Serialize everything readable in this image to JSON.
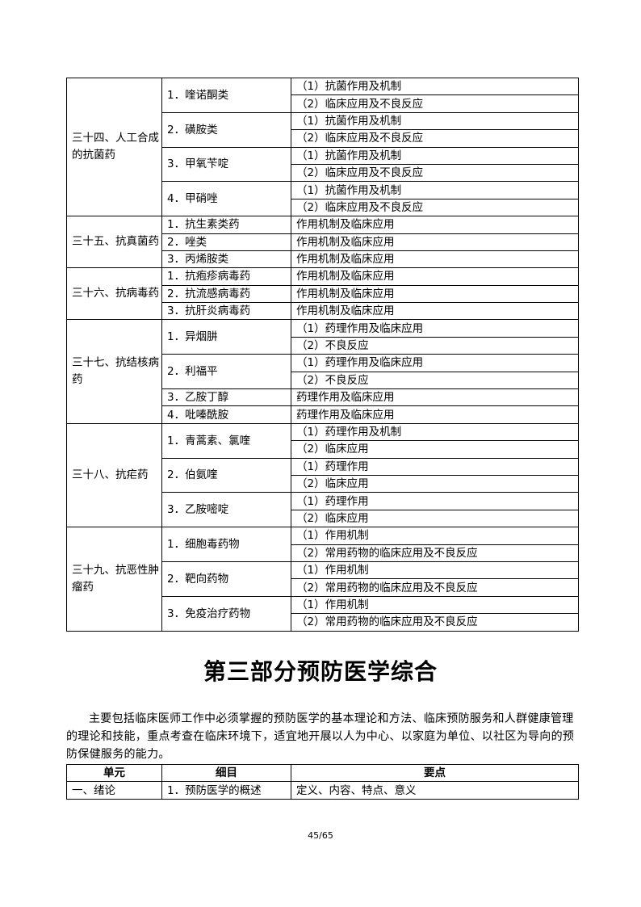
{
  "sections": [
    {
      "title": "三十四、人工合成的抗菌药",
      "items": [
        {
          "name": "1．喹诺酮类",
          "points": [
            "（1）抗菌作用及机制",
            "（2）临床应用及不良反应"
          ]
        },
        {
          "name": "2．磺胺类",
          "points": [
            "（1）抗菌作用及机制",
            "（2）临床应用及不良反应"
          ]
        },
        {
          "name": "3．甲氧苄啶",
          "points": [
            "（1）抗菌作用及机制",
            "（2）临床应用及不良反应"
          ]
        },
        {
          "name": "4．甲硝唑",
          "points": [
            "（1）抗菌作用及机制",
            "（2）临床应用及不良反应"
          ]
        }
      ]
    },
    {
      "title": "三十五、抗真菌药",
      "items": [
        {
          "name": "1．抗生素类药",
          "points": [
            "作用机制及临床应用"
          ]
        },
        {
          "name": "2．唑类",
          "points": [
            "作用机制及临床应用"
          ]
        },
        {
          "name": "3．丙烯胺类",
          "points": [
            "作用机制及临床应用"
          ]
        }
      ]
    },
    {
      "title": "三十六、抗病毒药",
      "items": [
        {
          "name": "1．抗疱疹病毒药",
          "points": [
            "作用机制及临床应用"
          ]
        },
        {
          "name": "2．抗流感病毒药",
          "points": [
            "作用机制及临床应用"
          ]
        },
        {
          "name": "3．抗肝炎病毒药",
          "points": [
            "作用机制及临床应用"
          ]
        }
      ]
    },
    {
      "title": "三十七、抗结核病药",
      "items": [
        {
          "name": "1．异烟肼",
          "points": [
            "（1）药理作用及临床应用",
            "（2）不良反应"
          ]
        },
        {
          "name": "2．利福平",
          "points": [
            "（1）药理作用及临床应用",
            "（2）不良反应"
          ]
        },
        {
          "name": "3．乙胺丁醇",
          "points": [
            "药理作用及临床应用"
          ]
        },
        {
          "name": "4．吡嗪酰胺",
          "points": [
            "药理作用及临床应用"
          ]
        }
      ]
    },
    {
      "title": "三十八、抗疟药",
      "items": [
        {
          "name": "1．青蒿素、氯喹",
          "points": [
            "（1）药理作用及机制",
            "（2）临床应用"
          ]
        },
        {
          "name": "2．伯氨喹",
          "points": [
            "（1）药理作用",
            "（2）临床应用"
          ]
        },
        {
          "name": "3．乙胺嘧啶",
          "points": [
            "（1）药理作用",
            "（2）临床应用"
          ]
        }
      ]
    },
    {
      "title": "三十九、抗恶性肿瘤药",
      "items": [
        {
          "name": "1．细胞毒药物",
          "points": [
            "（1）作用机制",
            "（2）常用药物的临床应用及不良反应"
          ]
        },
        {
          "name": "2．靶向药物",
          "points": [
            "（1）作用机制",
            "（2）常用药物的临床应用及不良反应"
          ]
        },
        {
          "name": "3．免疫治疗药物",
          "points": [
            "（1）作用机制",
            "（2）常用药物的临床应用及不良反应"
          ]
        }
      ]
    }
  ],
  "part3": {
    "title": "第三部分预防医学综合",
    "intro": "主要包括临床医师工作中必须掌握的预防医学的基本理论和方法、临床预防服务和人群健康管理的理论和技能，重点考查在临床环境下，适宜地开展以人为中心、以家庭为单位、以社区为导向的预防保健服务的能力。",
    "table": {
      "headers": [
        "单元",
        "细目",
        "要点"
      ],
      "rows": [
        [
          "一、绪论",
          "1．预防医学的概述",
          "定义、内容、特点、意义"
        ]
      ]
    }
  },
  "page_number": "45/65"
}
